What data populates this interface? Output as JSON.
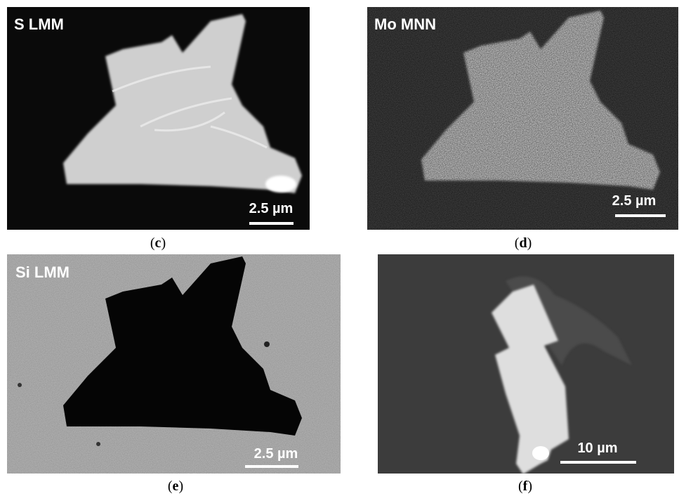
{
  "panels": [
    {
      "label": "S LMM",
      "scale": "2.5 µm",
      "caption": [
        "(",
        "c",
        ")"
      ]
    },
    {
      "label": "Mo MNN",
      "scale": "2.5 µm",
      "caption": [
        "(",
        "d",
        ")"
      ]
    },
    {
      "label": "Si LMM",
      "scale": "2.5 µm",
      "caption": [
        "(",
        "e",
        ")"
      ]
    },
    {
      "scale": "10 µm",
      "caption": [
        "(",
        "f",
        ")"
      ]
    }
  ]
}
